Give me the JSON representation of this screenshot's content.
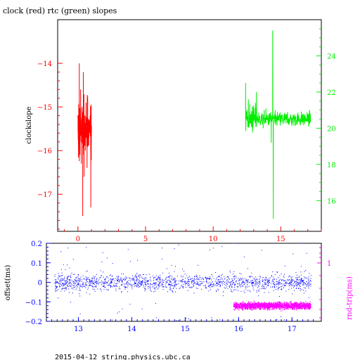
{
  "chart_data": [
    {
      "type": "line",
      "title": "clock (red) rtc (green) slopes",
      "ylabel": "clockslope",
      "xlim": [
        -1.5,
        18
      ],
      "xticks": [
        0,
        5,
        10,
        15
      ],
      "ylim_left": [
        -17.85,
        -13.0
      ],
      "yticks_left": [
        -14,
        -15,
        -16,
        -17
      ],
      "ylim_right": [
        14.3,
        26
      ],
      "yticks_right": [
        16,
        18,
        20,
        22,
        24
      ],
      "colors": {
        "left_axis": "#ff0000",
        "right_axis": "#00ee00",
        "bottom_axis": "#ff0000"
      },
      "series": [
        {
          "name": "clock",
          "axis": "left",
          "color": "#ff0000",
          "x_range": [
            0.0,
            1.0
          ],
          "center": -15.5,
          "values_sample": [
            [
              0.0,
              -15.2
            ],
            [
              0.05,
              -15.8
            ],
            [
              0.1,
              -14.0
            ],
            [
              0.15,
              -16.1
            ],
            [
              0.2,
              -14.6
            ],
            [
              0.25,
              -16.3
            ],
            [
              0.3,
              -15.0
            ],
            [
              0.35,
              -17.5
            ],
            [
              0.4,
              -14.2
            ],
            [
              0.45,
              -16.6
            ],
            [
              0.5,
              -15.4
            ],
            [
              0.55,
              -16.0
            ],
            [
              0.6,
              -14.9
            ],
            [
              0.65,
              -15.9
            ],
            [
              0.7,
              -15.3
            ],
            [
              0.8,
              -15.6
            ],
            [
              0.9,
              -15.2
            ],
            [
              0.95,
              -17.3
            ],
            [
              1.0,
              -15.6
            ]
          ]
        },
        {
          "name": "rtc",
          "axis": "right",
          "color": "#00ee00",
          "x_range": [
            12.4,
            17.2
          ],
          "center": 20.5,
          "values_sample": [
            [
              12.4,
              22.5
            ],
            [
              12.5,
              21.0
            ],
            [
              12.6,
              21.6
            ],
            [
              12.7,
              20.5
            ],
            [
              12.9,
              21.2
            ],
            [
              13.1,
              20.3
            ],
            [
              13.2,
              22.0
            ],
            [
              13.4,
              20.6
            ],
            [
              13.7,
              20.0
            ],
            [
              13.9,
              21.1
            ],
            [
              14.1,
              20.4
            ],
            [
              14.3,
              19.2
            ],
            [
              14.4,
              25.4
            ],
            [
              14.45,
              15.0
            ],
            [
              14.6,
              20.2
            ],
            [
              14.9,
              20.8
            ],
            [
              15.2,
              20.4
            ],
            [
              15.5,
              20.9
            ],
            [
              15.8,
              20.3
            ],
            [
              16.1,
              20.6
            ],
            [
              16.4,
              20.5
            ],
            [
              16.7,
              20.7
            ],
            [
              17.0,
              20.4
            ],
            [
              17.2,
              20.6
            ]
          ]
        }
      ]
    },
    {
      "type": "scatter",
      "ylabel": "offset(ms)",
      "y2label": "rnd-trip(ms)",
      "xlim": [
        12.4,
        17.55
      ],
      "xticks": [
        13,
        14,
        15,
        16,
        17
      ],
      "ylim": [
        -0.2,
        0.2
      ],
      "yticks": [
        0.2,
        0.1,
        0,
        -0.1,
        -0.2
      ],
      "y2ticks": [
        1
      ],
      "colors": {
        "axis": "#0000ff",
        "right_axis": "#ff00ff"
      },
      "series": [
        {
          "name": "offset",
          "color": "#0000ff",
          "x_range": [
            12.55,
            17.35
          ],
          "center": 0.0,
          "typical_spread": 0.03
        },
        {
          "name": "rnd-trip",
          "color": "#ff00ff",
          "x_range": [
            15.9,
            17.35
          ],
          "typical_value": -0.12
        }
      ]
    }
  ],
  "footer": "2015-04-12 string.physics.ubc.ca"
}
